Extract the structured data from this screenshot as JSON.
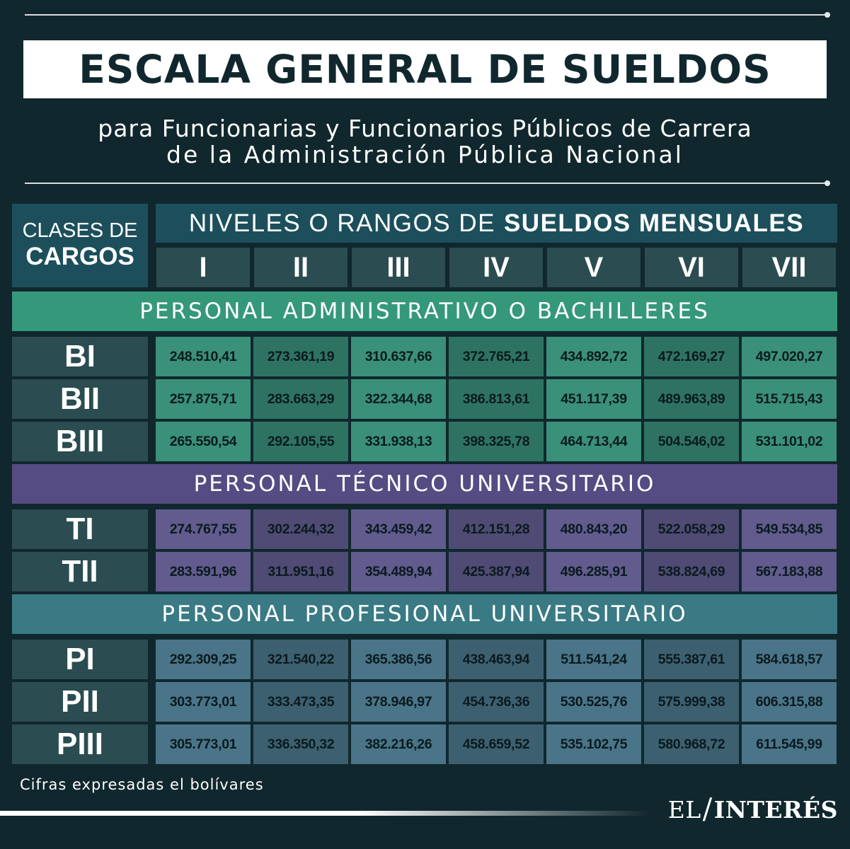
{
  "header": {
    "title": "ESCALA GENERAL DE SUELDOS",
    "subtitle_line1": "para Funcionarias y Funcionarios Públicos de Carrera",
    "subtitle_line2": "de la Administración Pública Nacional"
  },
  "table_header": {
    "clases_line1": "CLASES DE",
    "clases_line2": "CARGOS",
    "niveles_prefix": "NIVELES O RANGOS DE",
    "niveles_bold": "SUELDOS MENSUALES",
    "levels": [
      "I",
      "II",
      "III",
      "IV",
      "V",
      "VI",
      "VII"
    ]
  },
  "sections": [
    {
      "title": "PERSONAL ADMINISTRATIVO O BACHILLERES",
      "color": "#35987a",
      "cell_colors": [
        "#3a9078",
        "#2e7362",
        "#3a9078",
        "#2e7362",
        "#3a9078",
        "#2e7362",
        "#3a9078"
      ],
      "rows": [
        {
          "label": "BI",
          "values": [
            "248.510,41",
            "273.361,19",
            "310.637,66",
            "372.765,21",
            "434.892,72",
            "472.169,27",
            "497.020,27"
          ]
        },
        {
          "label": "BII",
          "values": [
            "257.875,71",
            "283.663,29",
            "322.344,68",
            "386.813,61",
            "451.117,39",
            "489.963,89",
            "515.715,43"
          ]
        },
        {
          "label": "BIII",
          "values": [
            "265.550,54",
            "292.105,55",
            "331.938,13",
            "398.325,78",
            "464.713,44",
            "504.546,02",
            "531.101,02"
          ]
        }
      ]
    },
    {
      "title": "PERSONAL TÉCNICO UNIVERSITARIO",
      "color": "#554c83",
      "cell_colors": [
        "#615b8e",
        "#4f4b74",
        "#615b8e",
        "#4f4b74",
        "#615b8e",
        "#4f4b74",
        "#615b8e"
      ],
      "rows": [
        {
          "label": "TI",
          "values": [
            "274.767,55",
            "302.244,32",
            "343.459,42",
            "412.151,28",
            "480.843,20",
            "522.058,29",
            "549.534,85"
          ]
        },
        {
          "label": "TII",
          "values": [
            "283.591,96",
            "311.951,16",
            "354.489,94",
            "425.387,94",
            "496.285,91",
            "538.824,69",
            "567.183,88"
          ]
        }
      ]
    },
    {
      "title": "PERSONAL PROFESIONAL UNIVERSITARIO",
      "color": "#3a7a84",
      "cell_colors": [
        "#4a7488",
        "#3d6070",
        "#4a7488",
        "#3d6070",
        "#4a7488",
        "#3d6070",
        "#4a7488"
      ],
      "rows": [
        {
          "label": "PI",
          "values": [
            "292.309,25",
            "321.540,22",
            "365.386,56",
            "438.463,94",
            "511.541,24",
            "555.387,61",
            "584.618,57"
          ]
        },
        {
          "label": "PII",
          "values": [
            "303.773,01",
            "333.473,35",
            "378.946,97",
            "454.736,36",
            "530.525,76",
            "575.999,38",
            "606.315,88"
          ]
        },
        {
          "label": "PIII",
          "values": [
            "305.773,01",
            "336.350,32",
            "382.216,26",
            "458.659,52",
            "535.102,75",
            "580.968,72",
            "611.545,99"
          ]
        }
      ]
    }
  ],
  "footer": {
    "note": "Cifras expresadas el bolívares",
    "logo_left": "EL",
    "logo_slash": "/",
    "logo_right": "INTERÉS"
  }
}
